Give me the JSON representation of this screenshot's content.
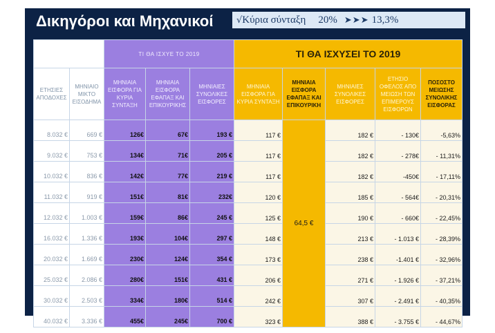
{
  "title": "Δικηγόροι και Μηχανικοί",
  "subtitle": {
    "check": "√",
    "label": "Κύρια σύνταξη",
    "percent": "20%",
    "arrows": "➤➤➤",
    "result": "13,3%"
  },
  "headers": {
    "purple_group": "ΤΙ ΘΑ ΙΣΧΥΕ ΤΟ 2019",
    "gold_group": "ΤΙ ΘΑ ΙΣΧΥΣΕΙ ΤΟ 2019",
    "columns": [
      "ΕΤΗΣΙΕΣ ΑΠΟΔΟΧΕΣ",
      "ΜΗΝΙΑΙΟ ΜΙΚΤΟ ΕΙΣΟΔΗΜΑ",
      "ΜΗΝΙΑΙΑ ΕΙΣΦΟΡΑ ΓΙΑ ΚΥΡΙΑ ΣΥΝΤΑΞΗ",
      "ΜΗΝΙΑΙΑ ΕΙΣΦΟΡΑ ΕΦΑΠΑΞ ΚΑΙ ΕΠΙΚΟΥΡΙΚΗΣ",
      "ΜΗΝΙΑΙΕΣ ΣΥΝΟΛΙΚΕΣ ΕΙΣΦΟΡΕΣ",
      "ΜΗΝΙΑΙΑ ΕΙΣΦΟΡΑ ΓΙΑ ΚΥΡΙΑ ΣΥΝΤΑΞΗ",
      "ΜΗΝΙΑΙΑ ΕΙΣΦΟΡΑ ΕΦΑΠΑΞ ΚΑΙ ΕΠΙΚΟΥΡΙΚΗ",
      "ΜΗΝΙΑΙΕΣ ΣΥΝΟΛΙΚΕΣ ΕΙΣΦΟΡΕΣ",
      "ΕΤΗΣΙΟ ΟΦΕΛΟΣ ΑΠΟ ΜΕΙΩΣΗ ΤΩΝ ΕΠΙΜΕΡΟΥΣ ΕΙΣΦΟΡΩΝ",
      "ΠΟΣΟΣΤΟ ΜΕΙΩΣΗΣ ΣΥΝΟΛΙΚΗΣ ΕΙΣΦΟΡΑΣ"
    ]
  },
  "shared_value": "64,5 €",
  "rows": [
    {
      "annual": "8.032 €",
      "monthly": "669 €",
      "main_old": "126€",
      "lump_old": "67€",
      "total_old": "193 €",
      "main_new": "117 €",
      "total_new": "182 €",
      "benefit": "- 130€",
      "reduction": "-5,63%"
    },
    {
      "annual": "9.032 €",
      "monthly": "753 €",
      "main_old": "134€",
      "lump_old": "71€",
      "total_old": "205 €",
      "main_new": "117 €",
      "total_new": "182 €",
      "benefit": "- 278€",
      "reduction": "- 11,31%"
    },
    {
      "annual": "10.032 €",
      "monthly": "836 €",
      "main_old": "142€",
      "lump_old": "77€",
      "total_old": "219 €",
      "main_new": "117 €",
      "total_new": "182 €",
      "benefit": "-450€",
      "reduction": "- 17,11%"
    },
    {
      "annual": "11.032 €",
      "monthly": "919 €",
      "main_old": "151€",
      "lump_old": "81€",
      "total_old": "232€",
      "main_new": "120 €",
      "total_new": "185 €",
      "benefit": "- 564€",
      "reduction": "- 20,31%"
    },
    {
      "annual": "12.032 €",
      "monthly": "1.003 €",
      "main_old": "159€",
      "lump_old": "86€",
      "total_old": "245 €",
      "main_new": "125 €",
      "total_new": "190 €",
      "benefit": "- 660€",
      "reduction": "- 22,45%"
    },
    {
      "annual": "16.032 €",
      "monthly": "1.336 €",
      "main_old": "193€",
      "lump_old": "104€",
      "total_old": "297 €",
      "main_new": "148 €",
      "total_new": "213 €",
      "benefit": "- 1.013 €",
      "reduction": "- 28,39%"
    },
    {
      "annual": "20.032 €",
      "monthly": "1.669 €",
      "main_old": "230€",
      "lump_old": "124€",
      "total_old": "354 €",
      "main_new": "173 €",
      "total_new": "238 €",
      "benefit": "-1.401 €",
      "reduction": "- 32,96%"
    },
    {
      "annual": "25.032 €",
      "monthly": "2.086 €",
      "main_old": "280€",
      "lump_old": "151€",
      "total_old": "431 €",
      "main_new": "206 €",
      "total_new": "271 €",
      "benefit": "- 1.926 €",
      "reduction": "- 37,21%"
    },
    {
      "annual": "30.032 €",
      "monthly": "2.503 €",
      "main_old": "334€",
      "lump_old": "180€",
      "total_old": "514 €",
      "main_new": "242 €",
      "total_new": "307 €",
      "benefit": "- 2.491 €",
      "reduction": "- 40,35%"
    },
    {
      "annual": "40.032 €",
      "monthly": "3.336 €",
      "main_old": "455€",
      "lump_old": "245€",
      "total_old": "700 €",
      "main_new": "323 €",
      "total_new": "388 €",
      "benefit": "- 3.755 €",
      "reduction": "- 44,67%"
    }
  ]
}
